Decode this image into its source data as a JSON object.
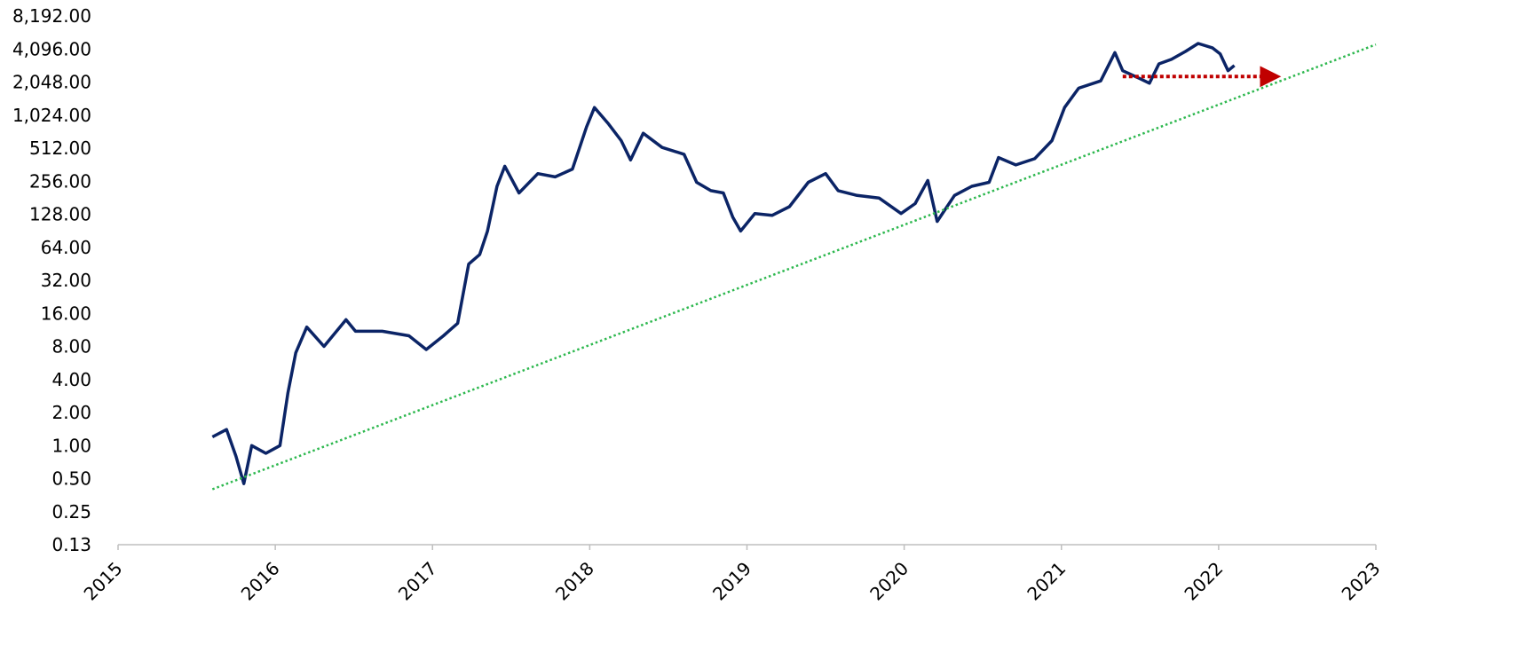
{
  "chart_data": {
    "type": "line",
    "log_y": true,
    "grid": false,
    "xlim": [
      2015,
      2023
    ],
    "xticks": [
      2015,
      2016,
      2017,
      2018,
      2019,
      2020,
      2021,
      2022,
      2023
    ],
    "ylim": [
      0.125,
      8192
    ],
    "yticks": [
      {
        "value": 0.125,
        "label": "0.13"
      },
      {
        "value": 0.25,
        "label": "0.25"
      },
      {
        "value": 0.5,
        "label": "0.50"
      },
      {
        "value": 1,
        "label": "1.00"
      },
      {
        "value": 2,
        "label": "2.00"
      },
      {
        "value": 4,
        "label": "4.00"
      },
      {
        "value": 8,
        "label": "8.00"
      },
      {
        "value": 16,
        "label": "16.00"
      },
      {
        "value": 32,
        "label": "32.00"
      },
      {
        "value": 64,
        "label": "64.00"
      },
      {
        "value": 128,
        "label": "128.00"
      },
      {
        "value": 256,
        "label": "256.00"
      },
      {
        "value": 512,
        "label": "512.00"
      },
      {
        "value": 1024,
        "label": "1,024.00"
      },
      {
        "value": 2048,
        "label": "2,048.00"
      },
      {
        "value": 4096,
        "label": "4,096.00"
      },
      {
        "value": 8192,
        "label": "8,192.00"
      }
    ],
    "series": [
      {
        "color": "#0b2466",
        "style": "solid",
        "x": [
          2015.6,
          2015.69,
          2015.75,
          2015.8,
          2015.85,
          2015.94,
          2016.03,
          2016.08,
          2016.13,
          2016.2,
          2016.31,
          2016.45,
          2016.51,
          2016.68,
          2016.85,
          2016.96,
          2017.07,
          2017.16,
          2017.23,
          2017.3,
          2017.35,
          2017.41,
          2017.46,
          2017.55,
          2017.67,
          2017.78,
          2017.89,
          2017.98,
          2018.03,
          2018.12,
          2018.2,
          2018.26,
          2018.34,
          2018.46,
          2018.6,
          2018.68,
          2018.77,
          2018.85,
          2018.91,
          2018.96,
          2019.05,
          2019.16,
          2019.27,
          2019.39,
          2019.5,
          2019.58,
          2019.7,
          2019.84,
          2019.98,
          2020.07,
          2020.15,
          2020.21,
          2020.32,
          2020.43,
          2020.54,
          2020.6,
          2020.71,
          2020.83,
          2020.94,
          2021.02,
          2021.11,
          2021.25,
          2021.34,
          2021.39,
          2021.5,
          2021.56,
          2021.62,
          2021.7,
          2021.79,
          2021.87,
          2021.96,
          2022.01,
          2022.06,
          2022.1
        ],
        "values": [
          1.2,
          1.4,
          0.8,
          0.45,
          1.0,
          0.85,
          1.0,
          3,
          7,
          12,
          8,
          14,
          11,
          11,
          10,
          7.5,
          10,
          13,
          45,
          55,
          90,
          230,
          350,
          200,
          300,
          280,
          330,
          800,
          1200,
          850,
          600,
          400,
          700,
          520,
          450,
          250,
          210,
          200,
          120,
          90,
          130,
          125,
          150,
          250,
          300,
          210,
          190,
          180,
          130,
          160,
          260,
          110,
          190,
          230,
          250,
          420,
          360,
          410,
          600,
          1200,
          1800,
          2100,
          3800,
          2600,
          2200,
          2000,
          3000,
          3300,
          3900,
          4600,
          4200,
          3700,
          2600,
          2900
        ]
      },
      {
        "color": "#2eb84f",
        "style": "dotted",
        "x": [
          2015.6,
          2023
        ],
        "values": [
          0.4,
          4500
        ]
      },
      {
        "color": "#c00000",
        "style": "dotted",
        "arrow": true,
        "x": [
          2021.39,
          2022.33
        ],
        "values": [
          2300,
          2300
        ]
      }
    ]
  }
}
